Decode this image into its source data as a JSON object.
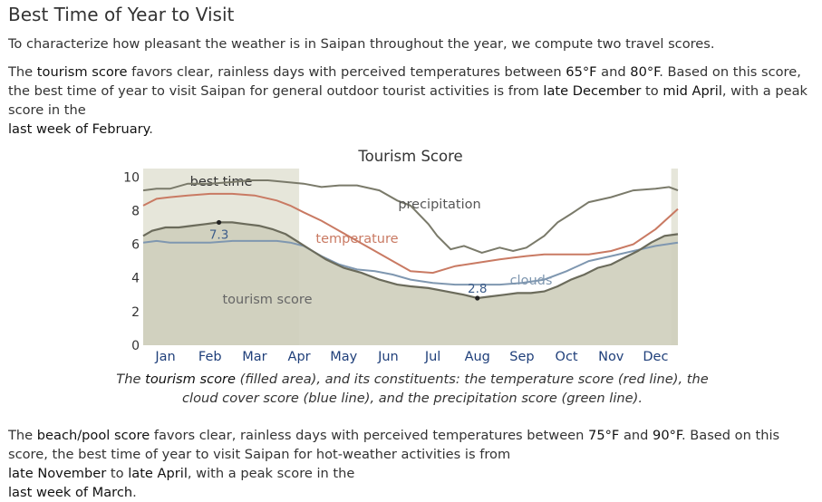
{
  "page": {
    "title": "Best Time of Year to Visit",
    "intro": "To characterize how pleasant the weather is in Saipan throughout the year, we compute two travel scores.",
    "tourism_paragraph": {
      "t1": "The ",
      "k1": "tourism score",
      "t2": " favors clear, rainless days with perceived temperatures between ",
      "k2": "65°F",
      "t3": " and ",
      "k3": "80°F",
      "t4": ". Based on this score, the best time of year to visit Saipan for general outdoor tourist activities is from ",
      "k4": "late December",
      "t5": " to ",
      "k5": "mid April",
      "t6": ", with a peak score in the ",
      "k6": "last week of February",
      "t7": "."
    },
    "caption": {
      "t1": "The ",
      "k1": "tourism score",
      "t2": " (filled area), and its constituents: the temperature score (red line), the cloud cover score (blue line), and the precipitation score (green line)."
    },
    "beach_paragraph": {
      "t1": "The ",
      "k1": "beach/pool score",
      "t2": " favors clear, rainless days with perceived temperatures between ",
      "k2": "75°F",
      "t3": " and ",
      "k3": "90°F",
      "t4": ". Based on this score, the best time of year to visit Saipan for hot-weather activities is from ",
      "k4": "late November",
      "t5": " to ",
      "k5": "late April",
      "t6": ", with a peak score in the ",
      "k6": "last week of March",
      "t7": "."
    }
  },
  "chart_data": {
    "type": "area",
    "title": "Tourism Score",
    "ylim": [
      0,
      10.5
    ],
    "yticks": [
      "0",
      "2",
      "4",
      "6",
      "8",
      "10"
    ],
    "ytick_values": [
      0,
      2,
      4,
      6,
      8,
      10
    ],
    "months": [
      "Jan",
      "Feb",
      "Mar",
      "Apr",
      "May",
      "Jun",
      "Jul",
      "Aug",
      "Sep",
      "Oct",
      "Nov",
      "Dec"
    ],
    "xrange": [
      0,
      12
    ],
    "best_time_label": "best time",
    "best_time_ranges": [
      [
        0,
        3.5
      ],
      [
        11.85,
        12
      ]
    ],
    "colors": {
      "area_fill": "#cfcfbd",
      "area_line": "#6b6b5b",
      "temperature": "#c97a63",
      "clouds": "#7f97b0",
      "precipitation": "#7a7a6a",
      "band": "#e6e6da",
      "axis_text": "#1f3f7a"
    },
    "series": [
      {
        "key": "precipitation",
        "label": "precipitation",
        "x": [
          0,
          0.3,
          0.6,
          1,
          1.5,
          2,
          2.4,
          2.8,
          3.2,
          3.6,
          4,
          4.4,
          4.8,
          5.3,
          5.7,
          6,
          6.4,
          6.6,
          6.9,
          7.2,
          7.6,
          8,
          8.3,
          8.6,
          9,
          9.3,
          9.6,
          10,
          10.5,
          11,
          11.5,
          11.8,
          12
        ],
        "values": [
          9.2,
          9.3,
          9.3,
          9.6,
          9.6,
          9.7,
          9.8,
          9.8,
          9.7,
          9.6,
          9.4,
          9.5,
          9.5,
          9.2,
          8.6,
          8.3,
          7.2,
          6.5,
          5.7,
          5.9,
          5.5,
          5.8,
          5.6,
          5.8,
          6.5,
          7.3,
          7.8,
          8.5,
          8.8,
          9.2,
          9.3,
          9.4,
          9.2
        ]
      },
      {
        "key": "temperature",
        "label": "temperature",
        "x": [
          0,
          0.3,
          0.6,
          1,
          1.5,
          2,
          2.5,
          3,
          3.3,
          3.6,
          4,
          4.4,
          4.8,
          5.2,
          5.6,
          6,
          6.5,
          7,
          7.5,
          8,
          8.3,
          8.6,
          9,
          9.5,
          10,
          10.5,
          11,
          11.5,
          12
        ],
        "values": [
          8.3,
          8.7,
          8.8,
          8.9,
          9.0,
          9.0,
          8.9,
          8.6,
          8.3,
          7.9,
          7.4,
          6.8,
          6.2,
          5.6,
          5.0,
          4.4,
          4.3,
          4.7,
          4.9,
          5.1,
          5.2,
          5.3,
          5.4,
          5.4,
          5.4,
          5.6,
          6.0,
          6.9,
          8.1
        ]
      },
      {
        "key": "clouds",
        "label": "clouds",
        "x": [
          0,
          0.3,
          0.6,
          1,
          1.5,
          2,
          2.5,
          3,
          3.3,
          3.6,
          4,
          4.4,
          4.8,
          5.2,
          5.6,
          6,
          6.5,
          7,
          7.5,
          8,
          8.5,
          9,
          9.5,
          10,
          10.5,
          11,
          11.5,
          12
        ],
        "values": [
          6.1,
          6.2,
          6.1,
          6.1,
          6.1,
          6.2,
          6.2,
          6.2,
          6.1,
          5.9,
          5.3,
          4.8,
          4.5,
          4.4,
          4.2,
          3.9,
          3.7,
          3.6,
          3.6,
          3.6,
          3.7,
          3.9,
          4.4,
          5.0,
          5.3,
          5.6,
          5.9,
          6.1
        ]
      },
      {
        "key": "tourism",
        "label": "tourism score",
        "x": [
          0,
          0.2,
          0.5,
          0.8,
          1.1,
          1.4,
          1.7,
          2.0,
          2.3,
          2.6,
          2.9,
          3.2,
          3.5,
          3.8,
          4.1,
          4.5,
          4.9,
          5.3,
          5.7,
          6.0,
          6.4,
          6.8,
          7.2,
          7.5,
          7.8,
          8.1,
          8.4,
          8.7,
          9.0,
          9.3,
          9.6,
          9.9,
          10.2,
          10.5,
          10.8,
          11.1,
          11.4,
          11.7,
          12
        ],
        "values": [
          6.5,
          6.8,
          7.0,
          7.0,
          7.1,
          7.2,
          7.3,
          7.3,
          7.2,
          7.1,
          6.9,
          6.6,
          6.1,
          5.6,
          5.1,
          4.6,
          4.3,
          3.9,
          3.6,
          3.5,
          3.4,
          3.2,
          3.0,
          2.8,
          2.9,
          3.0,
          3.1,
          3.1,
          3.2,
          3.5,
          3.9,
          4.2,
          4.6,
          4.8,
          5.2,
          5.6,
          6.1,
          6.5,
          6.6
        ]
      }
    ],
    "annotations": [
      {
        "label": "7.3",
        "x": 1.7,
        "y": 7.3,
        "placement": "below"
      },
      {
        "label": "2.8",
        "x": 7.5,
        "y": 2.8,
        "placement": "above"
      }
    ]
  }
}
